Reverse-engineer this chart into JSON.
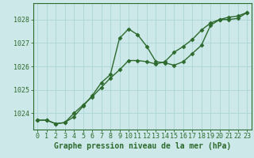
{
  "line1_x": [
    0,
    1,
    2,
    3,
    4,
    5,
    6,
    7,
    8,
    9,
    10,
    11,
    12,
    13,
    14,
    15,
    16,
    17,
    18,
    19,
    20,
    21,
    22,
    23
  ],
  "line1_y": [
    1023.7,
    1023.7,
    1023.55,
    1023.6,
    1023.85,
    1024.3,
    1024.75,
    1025.3,
    1025.65,
    1027.2,
    1027.6,
    1027.35,
    1026.85,
    1026.2,
    1026.15,
    1026.05,
    1026.2,
    1026.55,
    1026.9,
    1027.75,
    1028.0,
    1028.0,
    1028.05,
    1028.3
  ],
  "line2_x": [
    0,
    1,
    2,
    3,
    4,
    5,
    6,
    7,
    8,
    9,
    10,
    11,
    12,
    13,
    14,
    15,
    16,
    17,
    18,
    19,
    20,
    21,
    22,
    23
  ],
  "line2_y": [
    1023.7,
    1023.7,
    1023.55,
    1023.6,
    1024.0,
    1024.35,
    1024.7,
    1025.1,
    1025.5,
    1025.85,
    1026.25,
    1026.25,
    1026.2,
    1026.1,
    1026.2,
    1026.6,
    1026.85,
    1027.15,
    1027.55,
    1027.85,
    1028.0,
    1028.1,
    1028.15,
    1028.3
  ],
  "line_color": "#2d6a2d",
  "marker": "D",
  "markersize": 2.5,
  "linewidth": 1.0,
  "bg_color": "#cce8e8",
  "grid_color": "#b0d8d8",
  "ylabel_ticks": [
    1024,
    1025,
    1026,
    1027,
    1028
  ],
  "xlabel_ticks": [
    0,
    1,
    2,
    3,
    4,
    5,
    6,
    7,
    8,
    9,
    10,
    11,
    12,
    13,
    14,
    15,
    16,
    17,
    18,
    19,
    20,
    21,
    22,
    23
  ],
  "ylim": [
    1023.3,
    1028.7
  ],
  "xlim": [
    -0.5,
    23.5
  ],
  "xlabel": "Graphe pression niveau de la mer (hPa)",
  "xlabel_fontsize": 7,
  "tick_fontsize": 6,
  "axis_color": "#2d6a2d"
}
